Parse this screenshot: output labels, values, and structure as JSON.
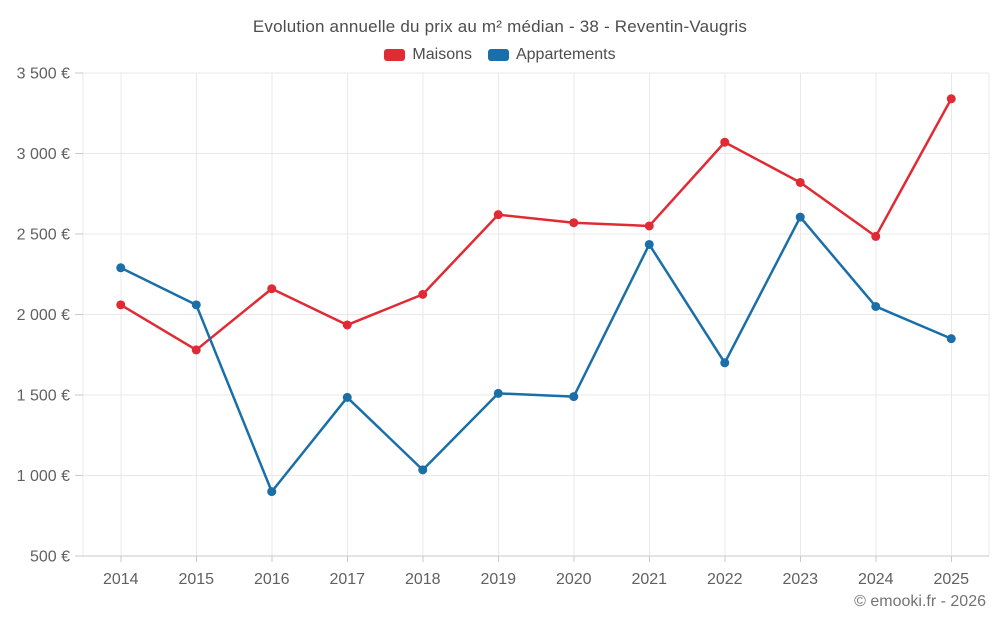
{
  "chart_data": {
    "type": "line",
    "title": "Evolution annuelle du prix au m² médian - 38 - Reventin-Vaugris",
    "categories": [
      "2014",
      "2015",
      "2016",
      "2017",
      "2018",
      "2019",
      "2020",
      "2021",
      "2022",
      "2023",
      "2024",
      "2025"
    ],
    "series": [
      {
        "name": "Maisons",
        "color": "#e02b35",
        "values": [
          2060,
          1780,
          2160,
          1935,
          2125,
          2620,
          2570,
          2550,
          3070,
          2820,
          2485,
          3340
        ]
      },
      {
        "name": "Appartements",
        "color": "#1a6fa8",
        "values": [
          2290,
          2060,
          900,
          1485,
          1035,
          1510,
          1490,
          2435,
          1700,
          2605,
          2050,
          1850
        ]
      }
    ],
    "xlabel": "",
    "ylabel": "",
    "ylim": [
      500,
      3500
    ],
    "yticks": [
      {
        "value": 500,
        "label": "500 €"
      },
      {
        "value": 1000,
        "label": "1 000 €"
      },
      {
        "value": 1500,
        "label": "1 500 €"
      },
      {
        "value": 2000,
        "label": "2 000 €"
      },
      {
        "value": 2500,
        "label": "2 500 €"
      },
      {
        "value": 3000,
        "label": "3 000 €"
      },
      {
        "value": 3500,
        "label": "3 500 €"
      }
    ],
    "currency_suffix": " €",
    "grid": true,
    "legend_position": "top",
    "marker": "circle"
  },
  "footer": {
    "copyright": "© emooki.fr - 2026"
  }
}
